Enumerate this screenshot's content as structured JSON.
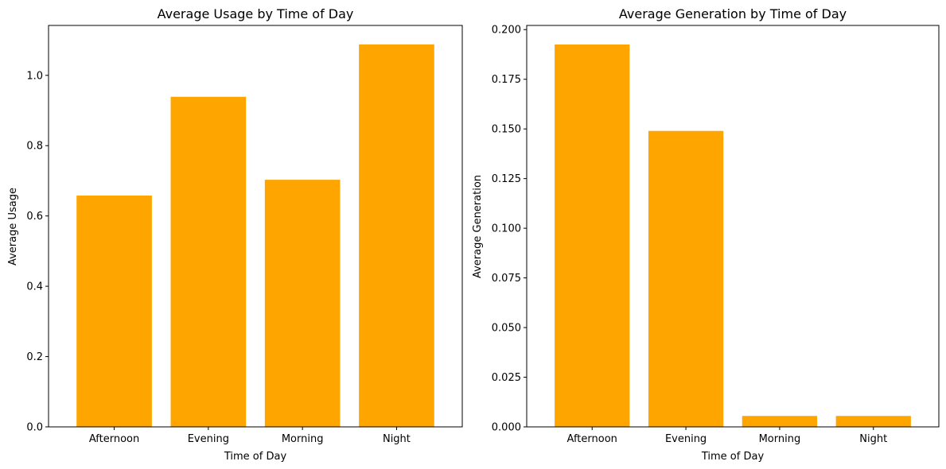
{
  "chart_data": [
    {
      "type": "bar",
      "title": "Average Usage by Time of Day",
      "xlabel": "Time of Day",
      "ylabel": "Average Usage",
      "categories": [
        "Afternoon",
        "Evening",
        "Morning",
        "Night"
      ],
      "values": [
        0.658,
        0.939,
        0.703,
        1.088
      ],
      "ylim": [
        0,
        1.142
      ],
      "yticks": [
        0.0,
        0.2,
        0.4,
        0.6,
        0.8,
        1.0
      ],
      "ytick_labels": [
        "0.0",
        "0.2",
        "0.4",
        "0.6",
        "0.8",
        "1.0"
      ],
      "bar_color": "#ffa500",
      "grid": false
    },
    {
      "type": "bar",
      "title": "Average Generation by Time of Day",
      "xlabel": "Time of Day",
      "ylabel": "Average Generation",
      "categories": [
        "Afternoon",
        "Evening",
        "Morning",
        "Night"
      ],
      "values": [
        0.1925,
        0.149,
        0.0055,
        0.0055
      ],
      "ylim": [
        0,
        0.2021
      ],
      "yticks": [
        0.0,
        0.025,
        0.05,
        0.075,
        0.1,
        0.125,
        0.15,
        0.175,
        0.2
      ],
      "ytick_labels": [
        "0.000",
        "0.025",
        "0.050",
        "0.075",
        "0.100",
        "0.125",
        "0.150",
        "0.175",
        "0.200"
      ],
      "bar_color": "#ffa500",
      "grid": false
    }
  ]
}
